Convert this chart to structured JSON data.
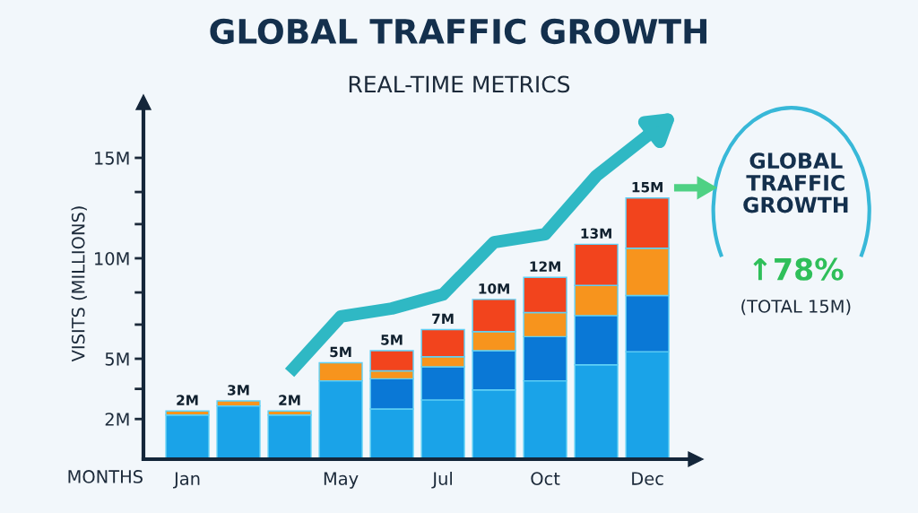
{
  "chart_data": {
    "type": "bar",
    "stacked": true,
    "title": "GLOBAL TRAFFIC GROWTH",
    "subtitle": "REAL-TIME METRICS",
    "xlabel": "MONTHS",
    "ylabel": "VISITS (MILLIONS)",
    "categories": [
      "Jan",
      null,
      null,
      "May",
      null,
      "Jul",
      null,
      "Oct",
      null,
      "Dec"
    ],
    "series": [
      {
        "color": "#1aa3e8",
        "values": [
          2.2,
          2.65,
          2.2,
          3.9,
          2.5,
          2.95,
          3.45,
          3.9,
          4.7,
          5.35
        ]
      },
      {
        "color": "#0a78d6",
        "values": [
          null,
          null,
          null,
          null,
          1.5,
          1.65,
          1.95,
          2.2,
          2.45,
          2.8
        ]
      },
      {
        "color": "#f7941d",
        "values": [
          0.2,
          0.25,
          0.2,
          0.9,
          0.4,
          0.5,
          0.95,
          1.2,
          1.5,
          2.35
        ]
      },
      {
        "color": "#f2441d",
        "values": [
          null,
          null,
          null,
          null,
          1.0,
          1.35,
          1.6,
          1.75,
          2.05,
          2.5
        ]
      },
      {
        "type": "line",
        "color": "#2fb8c4",
        "values": [
          null,
          null,
          4.3,
          7.1,
          7.5,
          8.2,
          10.8,
          11.2,
          14.1,
          16.1
        ]
      }
    ],
    "ylim": [
      0,
      17.5
    ],
    "yticks": [
      {
        "value": 2,
        "label": "2M"
      },
      {
        "value": 3.5,
        "label": null
      },
      {
        "value": 5,
        "label": "5M"
      },
      {
        "value": 6.7,
        "label": null
      },
      {
        "value": 8.3,
        "label": null
      },
      {
        "value": 10,
        "label": "10M"
      },
      {
        "value": 11.7,
        "label": null
      },
      {
        "value": 13.3,
        "label": null
      },
      {
        "value": 15,
        "label": "15M"
      }
    ],
    "grid": false,
    "legend": false,
    "annotations": [
      "GLOBAL\nTRAFFIC\nGROWTH",
      "↑78%",
      "(TOTAL 15M)",
      "2M",
      "3M",
      "2M",
      "5M",
      "5M",
      "7M",
      "10M",
      "12M",
      "13M",
      "15M"
    ]
  }
}
